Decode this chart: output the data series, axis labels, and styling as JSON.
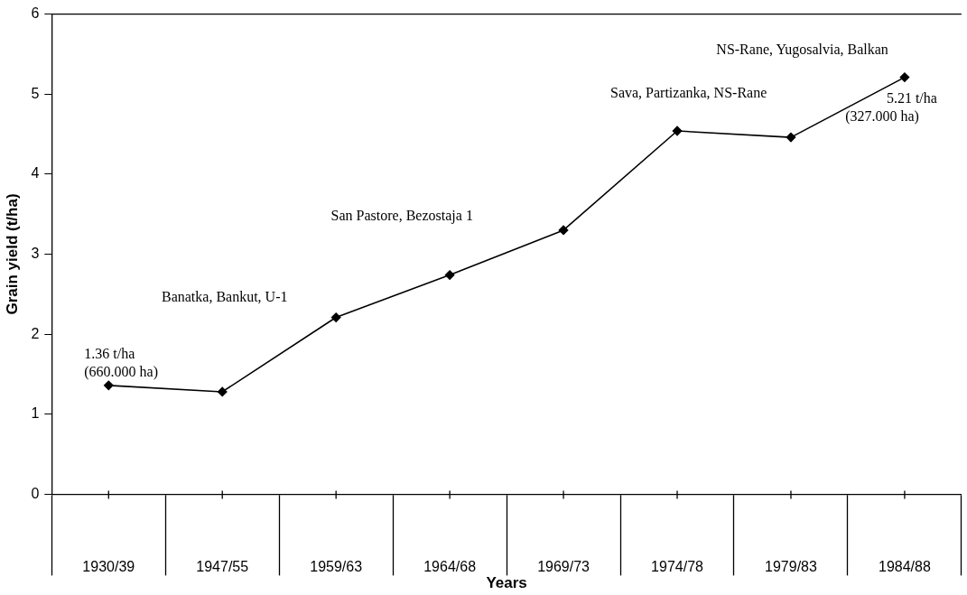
{
  "chart_data": {
    "type": "line",
    "xlabel": "Years",
    "ylabel": "Grain yield (t/ha)",
    "categories": [
      "1930/39",
      "1947/55",
      "1959/63",
      "1964/68",
      "1969/73",
      "1974/78",
      "1979/83",
      "1984/88"
    ],
    "series": [
      {
        "color": "#000000",
        "values": [
          1.36,
          1.28,
          2.21,
          2.74,
          3.3,
          4.54,
          4.46,
          5.21
        ]
      }
    ],
    "ylim": [
      0,
      6
    ],
    "yticks": [
      0,
      1,
      2,
      3,
      4,
      5,
      6
    ],
    "grid": false,
    "legend": false,
    "marker": "diamond",
    "line_style": "solid",
    "annotations": [
      {
        "text": "1.36 t/ha\n(660.000 ha)",
        "x": "1930/39",
        "y": 1.36
      },
      "Banatka, Bankut, U-1",
      "San Pastore, Bezostaja 1",
      "Sava, Partizanka, NS-Rane",
      "NS-Rane, Yugosalvia, Balkan",
      {
        "text": "5.21 t/ha\n(327.000 ha)",
        "x": "1984/88",
        "y": 5.21
      }
    ]
  }
}
